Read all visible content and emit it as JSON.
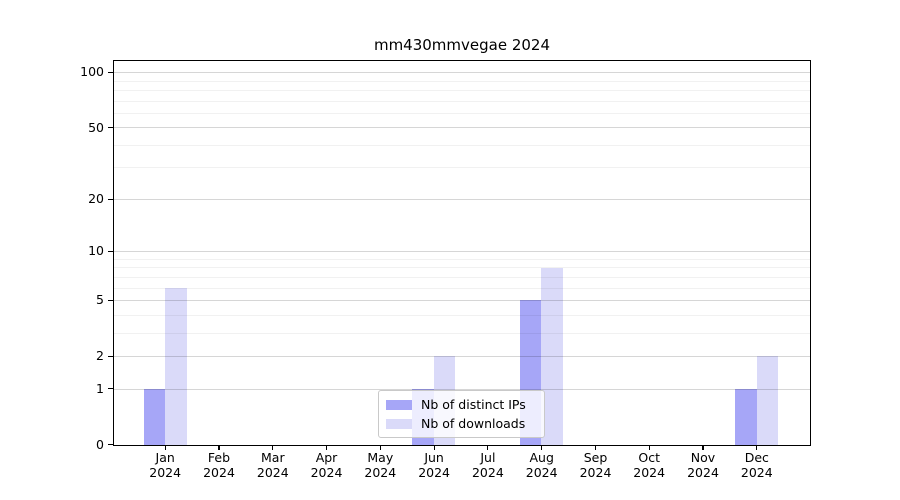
{
  "title": "mm430mmvegae 2024",
  "chart_data": {
    "type": "bar",
    "title": "mm430mmvegae 2024",
    "categories": [
      "Jan",
      "Feb",
      "Mar",
      "Apr",
      "May",
      "Jun",
      "Jul",
      "Aug",
      "Sep",
      "Oct",
      "Nov",
      "Dec"
    ],
    "category_year": "2024",
    "series": [
      {
        "name": "Nb of distinct IPs",
        "color": "#a6a6f7",
        "values": [
          1,
          0,
          0,
          0,
          0,
          1,
          0,
          5,
          0,
          0,
          0,
          1
        ]
      },
      {
        "name": "Nb of downloads",
        "color": "#dadaf9",
        "values": [
          6,
          0,
          0,
          0,
          0,
          2,
          0,
          8,
          0,
          0,
          0,
          2
        ]
      }
    ],
    "xlabel": "",
    "ylabel": "",
    "yscale": "log1p",
    "ylim": [
      0,
      115
    ],
    "y_major_ticks": [
      0,
      1,
      2,
      5,
      10,
      20,
      50,
      100
    ],
    "y_minor_ticks": [
      3,
      4,
      6,
      7,
      8,
      9,
      30,
      40,
      60,
      70,
      80,
      90
    ],
    "grid": true,
    "grid_which": "both",
    "legend_position": "lower center",
    "colors": {
      "axes_frame": "#000000",
      "major_grid": "#d2d2d2",
      "minor_grid": "#ececec",
      "background": "#ffffff"
    }
  }
}
